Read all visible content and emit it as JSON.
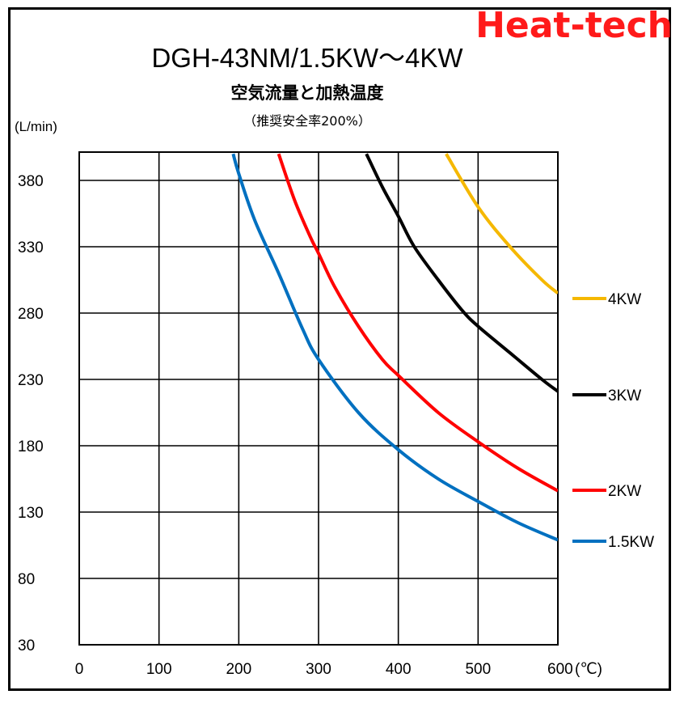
{
  "brand": "Heat-tech",
  "chart_data": {
    "type": "line",
    "title": "DGH-43NM/1.5KW～4KW",
    "subtitle": "空気流量と加熱温度",
    "note": "（推奨安全率200%）",
    "ylabel": "(L/min)",
    "xunit": "(℃)",
    "xlim": [
      0,
      600
    ],
    "ylim": [
      30,
      400
    ],
    "xticks": [
      0,
      100,
      200,
      300,
      400,
      500,
      600
    ],
    "yticks": [
      30,
      80,
      130,
      180,
      230,
      280,
      330,
      380
    ],
    "grid": true,
    "legend_position": "right",
    "series": [
      {
        "name": "4KW",
        "color": "#f5b800",
        "x": [
          460,
          500,
          540,
          580,
          600
        ],
        "y": [
          400,
          360,
          330,
          305,
          295
        ]
      },
      {
        "name": "3KW",
        "color": "#000000",
        "x": [
          360,
          380,
          400,
          420,
          450,
          480,
          500,
          540,
          580,
          600
        ],
        "y": [
          400,
          375,
          353,
          330,
          305,
          282,
          270,
          250,
          230,
          221
        ]
      },
      {
        "name": "2KW",
        "color": "#ff0000",
        "x": [
          250,
          270,
          290,
          300,
          320,
          350,
          380,
          400,
          450,
          500,
          550,
          600
        ],
        "y": [
          400,
          365,
          337,
          325,
          300,
          270,
          245,
          233,
          205,
          183,
          163,
          146
        ]
      },
      {
        "name": "1.5KW",
        "color": "#0070c0",
        "x": [
          193,
          200,
          220,
          250,
          280,
          300,
          350,
          400,
          450,
          500,
          550,
          600
        ],
        "y": [
          400,
          385,
          350,
          310,
          268,
          245,
          205,
          177,
          155,
          138,
          122,
          109
        ]
      }
    ]
  }
}
